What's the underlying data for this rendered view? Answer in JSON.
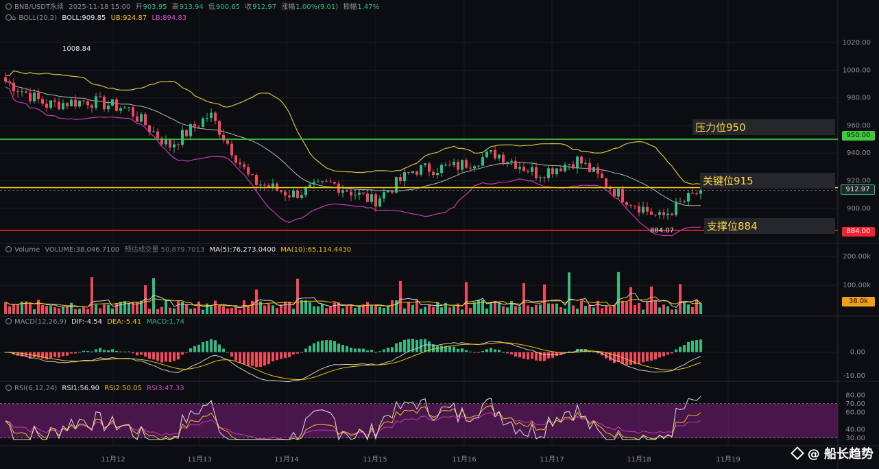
{
  "header": {
    "symbol": "BNB/USDT永续",
    "datetime": "2025-11-18 15:00",
    "open_label": "开",
    "open": "903.95",
    "high_label": "高",
    "high": "913.94",
    "low_label": "低",
    "low": "900.65",
    "close_label": "收",
    "close": "912.97",
    "change_label": "涨幅",
    "change": "1.00%(9.01)",
    "amp_label": "振幅",
    "amp": "1.47%"
  },
  "boll": {
    "name": "BOLL(20,2)",
    "boll": "BOLL:909.85",
    "ub": "UB:924.87",
    "lb": "LB:894.83"
  },
  "volume_header": {
    "name": "Volume",
    "vol": "VOLUME:38,046.7100",
    "est": "预估成交量 50,879.7013",
    "ma5": "MA(5):76,273.0400",
    "ma10": "MA(10):65,114.4430"
  },
  "macd_header": {
    "name": "MACD(12,26,9)",
    "dif": "DIF:-4.54",
    "dea": "DEA:-5.41",
    "macd": "MACD:1.74"
  },
  "rsi_header": {
    "name": "RSI(6,12,24)",
    "rsi1": "RSI1:56.90",
    "rsi2": "RSI2:50.05",
    "rsi3": "RSI3:47.33"
  },
  "levels": {
    "resistance": "压力位950",
    "key": "关键位915",
    "support": "支撑位884"
  },
  "tags": {
    "resistance_value": "950.00",
    "current_price": "912.97",
    "support_value": "884.00",
    "volume_current": "38.0k"
  },
  "annotations": {
    "high_label": "1008.84",
    "low_label": "884.07"
  },
  "watermark": "@ 船长趋势",
  "colors": {
    "up": "#2ebd85",
    "down": "#f6465d",
    "boll_upper": "#d8c242",
    "boll_mid": "#b8b8b8",
    "boll_lower": "#c43db8",
    "resistance": "#3fc93f",
    "key": "#f0c419",
    "support": "#f3202f",
    "rsi_band": "#7a1f7a"
  },
  "chart_data": [
    {
      "type": "candlestick",
      "pair": "BNB/USDT永续",
      "interval": "1h",
      "price_axis": {
        "ticks": [
          1020,
          1000,
          980,
          960,
          940,
          920,
          900
        ],
        "ylim": [
          882,
          1032
        ]
      },
      "x_ticks": [
        "11月12",
        "11月13",
        "11月14",
        "11月15",
        "11月16",
        "11月17",
        "11月18",
        "11月19"
      ],
      "period_high": 1008.84,
      "period_low": 884.07,
      "key_closes": [
        [
          "11月11",
          992
        ],
        [
          "11月12",
          975
        ],
        [
          "11月12 12:00",
          978
        ],
        [
          "11月13",
          972
        ],
        [
          "11月13 08:00",
          945
        ],
        [
          "11月13 20:00",
          968
        ],
        [
          "11月14 02:00",
          920
        ],
        [
          "11月14 10:00",
          910
        ],
        [
          "11月14 20:00",
          918
        ],
        [
          "11月15",
          905
        ],
        [
          "11月15 08:00",
          928
        ],
        [
          "11月16",
          930
        ],
        [
          "11月16 16:00",
          940
        ],
        [
          "11月17",
          925
        ],
        [
          "11月17 12:00",
          935
        ],
        [
          "11月18",
          910
        ],
        [
          "11月18 08:00",
          893
        ],
        [
          "11月18 15:00",
          912.97
        ]
      ],
      "horizontal_levels": [
        {
          "label": "压力位950",
          "value": 950
        },
        {
          "label": "关键位915",
          "value": 915
        },
        {
          "label": "支撑位884",
          "value": 884
        }
      ],
      "boll": {
        "mid": 909.85,
        "upper": 924.87,
        "lower": 894.83
      }
    },
    {
      "type": "bar",
      "name": "Volume",
      "y_ticks": [
        "200.00k",
        "100.00k"
      ],
      "current": 38046.71,
      "ma5": 76273.04,
      "ma10": 65114.443
    },
    {
      "type": "bar",
      "name": "MACD(12,26,9)",
      "y_ticks": [
        "0.00",
        "-10.00"
      ],
      "dif": -4.54,
      "dea": -5.41,
      "macd": 1.74
    },
    {
      "type": "line",
      "name": "RSI(6,12,24)",
      "y_ticks": [
        "80.00",
        "70.00",
        "60.00",
        "40.00",
        "30.00"
      ],
      "rsi1": 56.9,
      "rsi2": 50.05,
      "rsi3": 47.33,
      "band": [
        30,
        70
      ]
    }
  ]
}
